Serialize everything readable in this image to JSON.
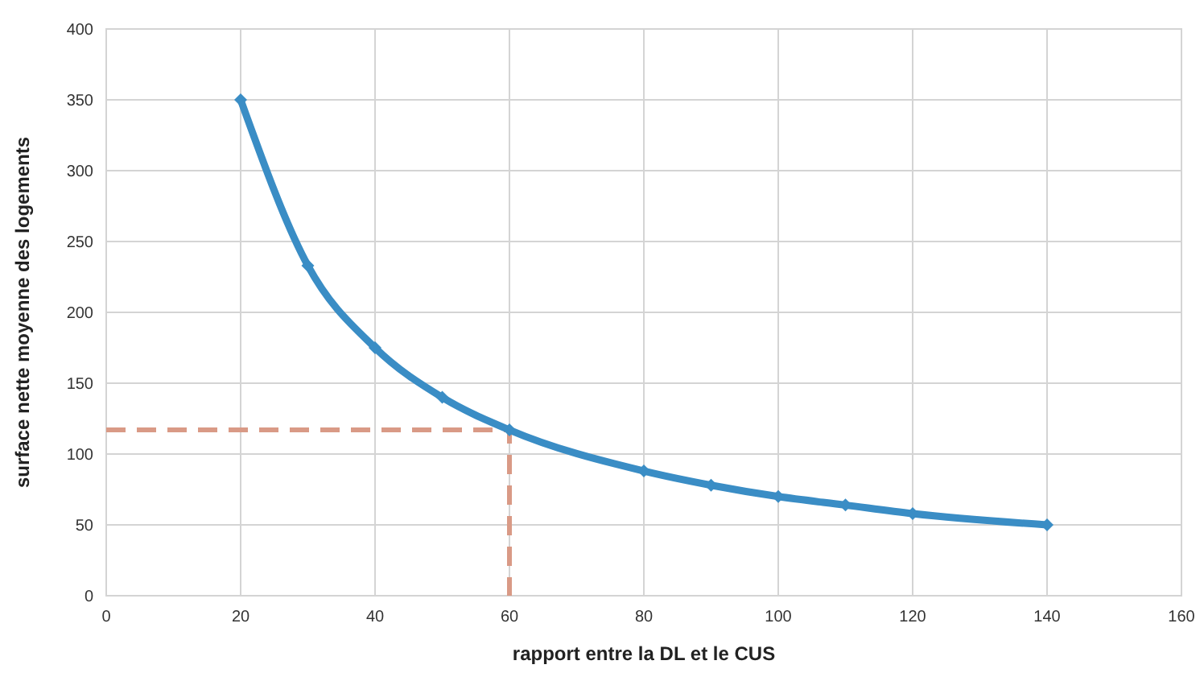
{
  "chart_data": {
    "type": "line",
    "xlabel": "rapport entre la DL et le CUS",
    "ylabel": "surface nette moyenne des logements",
    "xlim": [
      0,
      160
    ],
    "xticks": [
      0,
      20,
      40,
      60,
      80,
      100,
      120,
      140,
      160
    ],
    "ylim": [
      0,
      400
    ],
    "yticks": [
      0,
      50,
      100,
      150,
      200,
      250,
      300,
      350,
      400
    ],
    "grid": true,
    "series": [
      {
        "color": "#3a8dc5",
        "x": [
          20,
          30,
          40,
          50,
          60,
          80,
          90,
          100,
          110,
          120,
          140
        ],
        "values": [
          350,
          233,
          175,
          140,
          117,
          88,
          78,
          70,
          64,
          58,
          50
        ],
        "marker": "diamond",
        "line_style": "solid"
      },
      {
        "type": "line",
        "color": "#d99a86",
        "x": [
          0,
          60,
          60
        ],
        "values": [
          117,
          117,
          0
        ],
        "marker": "none",
        "line_style": "dashed"
      }
    ]
  }
}
